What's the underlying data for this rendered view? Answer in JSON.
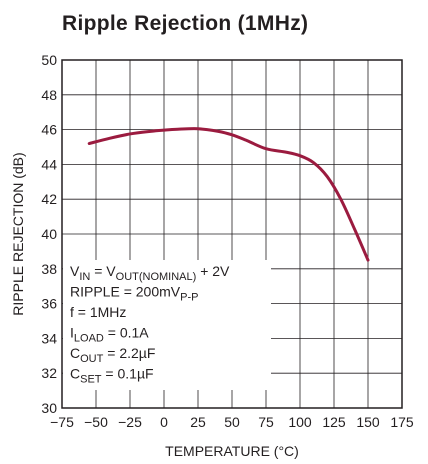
{
  "chart_data": {
    "type": "line",
    "title": "Ripple Rejection (1MHz)",
    "xlabel": "TEMPERATURE (°C)",
    "ylabel": "RIPPLE REJECTION (dB)",
    "x": [
      -55,
      -40,
      -25,
      -10,
      0,
      10,
      25,
      40,
      50,
      60,
      75,
      90,
      100,
      110,
      120,
      130,
      140,
      150
    ],
    "series": [
      {
        "color": "#9b1b3f",
        "values": [
          45.2,
          45.5,
          45.75,
          45.9,
          45.97,
          46.02,
          46.05,
          45.9,
          45.7,
          45.4,
          44.9,
          44.7,
          44.5,
          44.1,
          43.3,
          42.0,
          40.3,
          38.5
        ]
      }
    ],
    "xlim": [
      -75,
      175
    ],
    "ylim": [
      30,
      50
    ],
    "xticks": [
      {
        "value": -75,
        "label": "−75"
      },
      {
        "value": -50,
        "label": "−50"
      },
      {
        "value": -25,
        "label": "−25"
      },
      0,
      25,
      50,
      75,
      100,
      125,
      150,
      175
    ],
    "yticks": [
      30,
      32,
      34,
      36,
      38,
      40,
      42,
      44,
      46,
      48,
      50
    ],
    "grid": true,
    "annotations": [
      [
        {
          "text": "V"
        },
        {
          "text": "IN",
          "sub": true
        },
        {
          "text": " = V"
        },
        {
          "text": "OUT(NOMINAL)",
          "sub": true
        },
        {
          "text": " + 2V"
        }
      ],
      [
        {
          "text": "RIPPLE = 200mV"
        },
        {
          "text": "P-P",
          "sub": true
        }
      ],
      [
        {
          "text": "f = 1MHz"
        }
      ],
      [
        {
          "text": "I"
        },
        {
          "text": "LOAD",
          "sub": true
        },
        {
          "text": " = 0.1A"
        }
      ],
      [
        {
          "text": "C"
        },
        {
          "text": "OUT",
          "sub": true
        },
        {
          "text": " = 2.2µF"
        }
      ],
      [
        {
          "text": "C"
        },
        {
          "text": "SET",
          "sub": true
        },
        {
          "text": " = 0.1µF"
        }
      ]
    ]
  }
}
